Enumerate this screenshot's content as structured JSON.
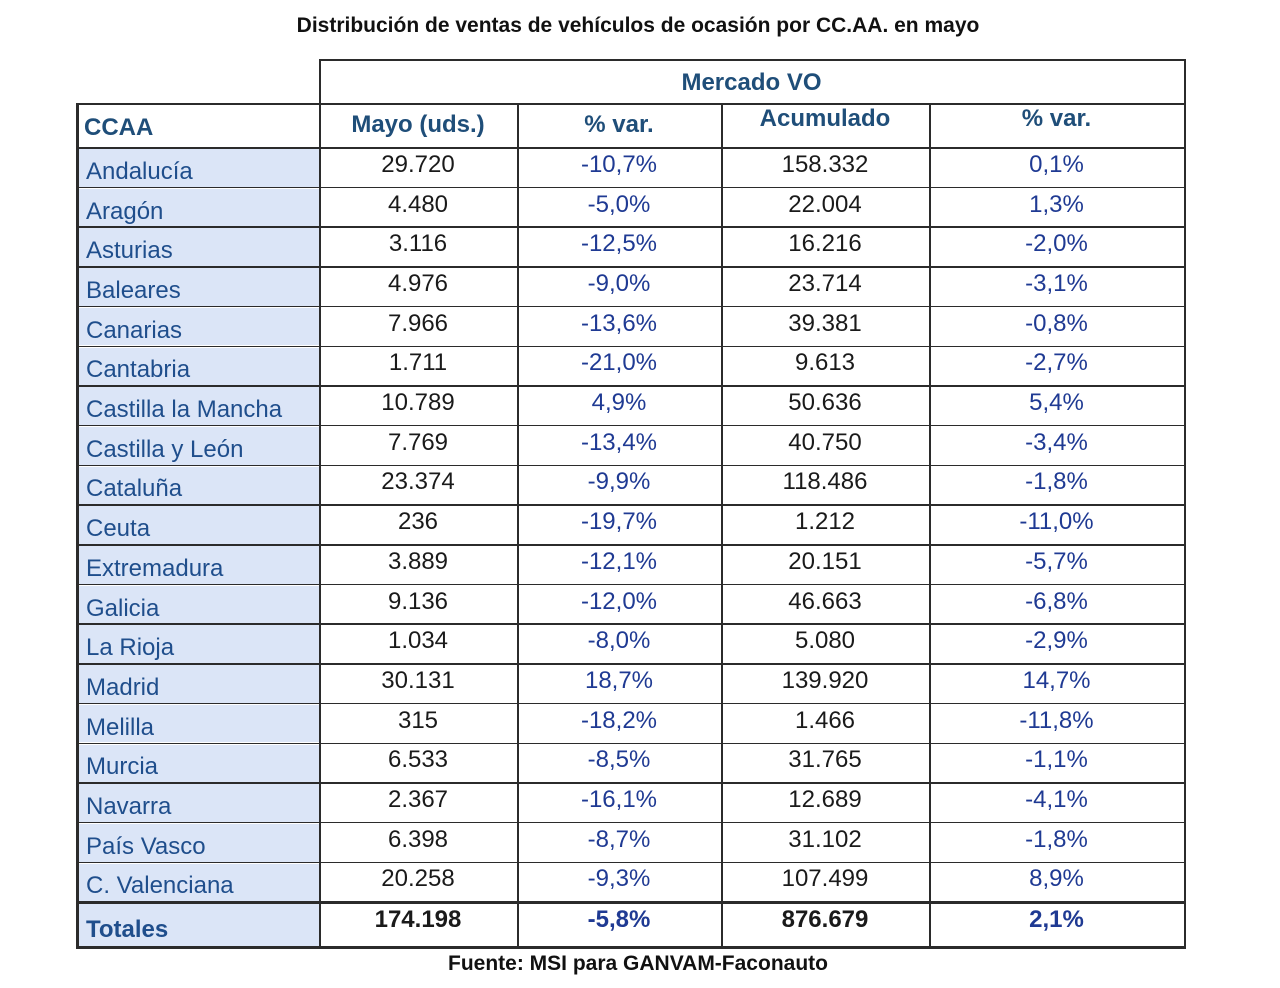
{
  "title": "Distribución de ventas de vehículos de ocasión por CC.AA. en mayo",
  "group_header": "Mercado VO",
  "columns": [
    "CCAA",
    "Mayo (uds.)",
    "% var.",
    "Acumulado",
    "% var."
  ],
  "rows": [
    {
      "ccaa": "Andalucía",
      "mayo": "29.720",
      "var1": "-10,7%",
      "acumulado": "158.332",
      "var2": "0,1%"
    },
    {
      "ccaa": "Aragón",
      "mayo": "4.480",
      "var1": "-5,0%",
      "acumulado": "22.004",
      "var2": "1,3%"
    },
    {
      "ccaa": "Asturias",
      "mayo": "3.116",
      "var1": "-12,5%",
      "acumulado": "16.216",
      "var2": "-2,0%"
    },
    {
      "ccaa": "Baleares",
      "mayo": "4.976",
      "var1": "-9,0%",
      "acumulado": "23.714",
      "var2": "-3,1%"
    },
    {
      "ccaa": "Canarias",
      "mayo": "7.966",
      "var1": "-13,6%",
      "acumulado": "39.381",
      "var2": "-0,8%"
    },
    {
      "ccaa": "Cantabria",
      "mayo": "1.711",
      "var1": "-21,0%",
      "acumulado": "9.613",
      "var2": "-2,7%"
    },
    {
      "ccaa": "Castilla la Mancha",
      "mayo": "10.789",
      "var1": "4,9%",
      "acumulado": "50.636",
      "var2": "5,4%"
    },
    {
      "ccaa": "Castilla y León",
      "mayo": "7.769",
      "var1": "-13,4%",
      "acumulado": "40.750",
      "var2": "-3,4%"
    },
    {
      "ccaa": "Cataluña",
      "mayo": "23.374",
      "var1": "-9,9%",
      "acumulado": "118.486",
      "var2": "-1,8%"
    },
    {
      "ccaa": "Ceuta",
      "mayo": "236",
      "var1": "-19,7%",
      "acumulado": "1.212",
      "var2": "-11,0%"
    },
    {
      "ccaa": "Extremadura",
      "mayo": "3.889",
      "var1": "-12,1%",
      "acumulado": "20.151",
      "var2": "-5,7%"
    },
    {
      "ccaa": "Galicia",
      "mayo": "9.136",
      "var1": "-12,0%",
      "acumulado": "46.663",
      "var2": "-6,8%"
    },
    {
      "ccaa": "La Rioja",
      "mayo": "1.034",
      "var1": "-8,0%",
      "acumulado": "5.080",
      "var2": "-2,9%"
    },
    {
      "ccaa": "Madrid",
      "mayo": "30.131",
      "var1": "18,7%",
      "acumulado": "139.920",
      "var2": "14,7%"
    },
    {
      "ccaa": "Melilla",
      "mayo": "315",
      "var1": "-18,2%",
      "acumulado": "1.466",
      "var2": "-11,8%"
    },
    {
      "ccaa": "Murcia",
      "mayo": "6.533",
      "var1": "-8,5%",
      "acumulado": "31.765",
      "var2": "-1,1%"
    },
    {
      "ccaa": "Navarra",
      "mayo": "2.367",
      "var1": "-16,1%",
      "acumulado": "12.689",
      "var2": "-4,1%"
    },
    {
      "ccaa": "País Vasco",
      "mayo": "6.398",
      "var1": "-8,7%",
      "acumulado": "31.102",
      "var2": "-1,8%"
    },
    {
      "ccaa": "C. Valenciana",
      "mayo": "20.258",
      "var1": "-9,3%",
      "acumulado": "107.499",
      "var2": "8,9%"
    }
  ],
  "totals": {
    "ccaa": "Totales",
    "mayo": "174.198",
    "var1": "-5,8%",
    "acumulado": "876.679",
    "var2": "2,1%"
  },
  "source": "Fuente: MSI para GANVAM-Faconauto"
}
